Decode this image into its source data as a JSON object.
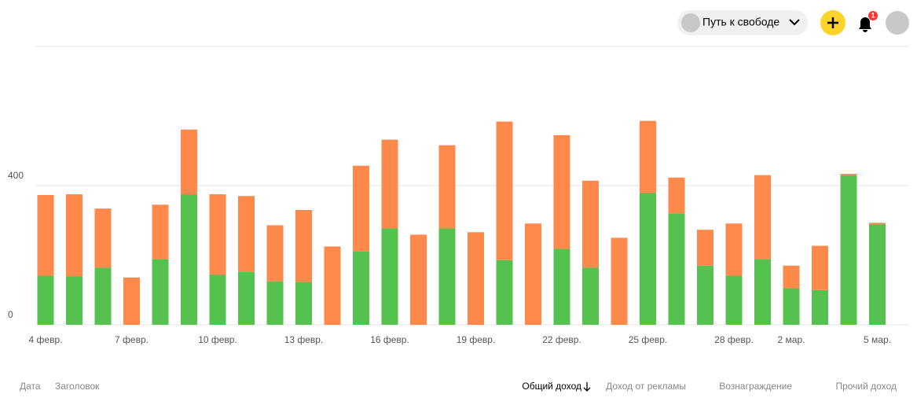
{
  "header": {
    "channel": "Путь к свободе",
    "notifications": "1"
  },
  "chart_data": {
    "type": "bar",
    "stacked": true,
    "categories": [
      "4 февр.",
      null,
      null,
      "7 февр.",
      null,
      null,
      "10 февр.",
      null,
      null,
      "13 февр.",
      null,
      null,
      "16 февр.",
      null,
      null,
      "19 февр.",
      null,
      null,
      "22 февр.",
      null,
      null,
      "25 февр.",
      null,
      null,
      "28 февр.",
      null,
      "2 мар.",
      null,
      null,
      "5 мар."
    ],
    "series": [
      {
        "name": "Доход от рекламы",
        "color": "#55c24f",
        "values": [
          141,
          139,
          164,
          0,
          189,
          375,
          145,
          152,
          125,
          123,
          0,
          211,
          277,
          0,
          277,
          0,
          186,
          0,
          218,
          164,
          0,
          380,
          320,
          170,
          141,
          189,
          105,
          100,
          430,
          289
        ]
      },
      {
        "name": "Вознаграждение",
        "color": "#ff884b",
        "values": [
          232,
          236,
          170,
          136,
          156,
          186,
          230,
          218,
          161,
          207,
          225,
          246,
          255,
          259,
          239,
          266,
          398,
          291,
          327,
          250,
          250,
          206,
          103,
          103,
          150,
          241,
          65,
          127,
          4,
          4
        ]
      }
    ],
    "ylim": [
      0,
      800
    ],
    "yticks": [
      0,
      400
    ],
    "grid": true
  },
  "table": {
    "date": "Дата",
    "title": "Заголовок",
    "total": "Общий доход",
    "other": "Прочий доход"
  }
}
